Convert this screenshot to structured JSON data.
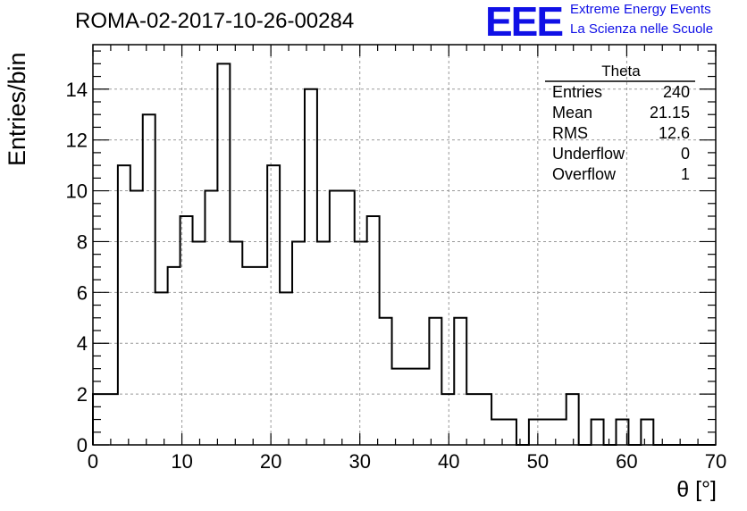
{
  "header": {
    "run_title": "ROMA-02-2017-10-26-00284",
    "logo_text": "EEE",
    "logo_line1": "Extreme Energy Events",
    "logo_line2": "La Scienza nelle Scuole"
  },
  "stats": {
    "title": "Theta",
    "rows": [
      {
        "key": "Entries",
        "value": "240"
      },
      {
        "key": "Mean",
        "value": "21.15"
      },
      {
        "key": "RMS",
        "value": "12.6"
      },
      {
        "key": "Underflow",
        "value": "0"
      },
      {
        "key": "Overflow",
        "value": "1"
      }
    ]
  },
  "colors": {
    "line": "#000000",
    "grid": "#999999",
    "logo": "#1010e6"
  },
  "chart_data": {
    "type": "bar",
    "style": "step-histogram",
    "title": "ROMA-02-2017-10-26-00284",
    "xlabel": "θ [°]",
    "ylabel": "Entries/bin",
    "xlim": [
      0,
      70
    ],
    "ylim": [
      0,
      15.75
    ],
    "grid": true,
    "bin_width": 1.4,
    "x_ticks": [
      0,
      10,
      20,
      30,
      40,
      50,
      60,
      70
    ],
    "y_ticks": [
      0,
      2,
      4,
      6,
      8,
      10,
      12,
      14
    ],
    "values": [
      2,
      2,
      11,
      10,
      13,
      6,
      7,
      9,
      8,
      10,
      15,
      8,
      7,
      7,
      11,
      6,
      8,
      14,
      8,
      10,
      10,
      8,
      9,
      5,
      3,
      3,
      3,
      5,
      2,
      5,
      2,
      2,
      1,
      1,
      0,
      1,
      1,
      1,
      2,
      0,
      1,
      0,
      1,
      0,
      1,
      0,
      0,
      0,
      0,
      0
    ]
  }
}
